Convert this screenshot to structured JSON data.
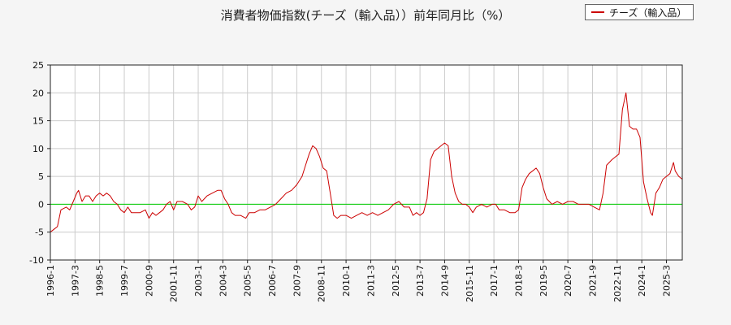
{
  "chart_data": {
    "type": "line",
    "title": "消費者物価指数(チーズ（輸入品））前年同月比（%）",
    "xlabel": "",
    "ylabel": "",
    "ylim": [
      -10,
      25
    ],
    "yticks": [
      25,
      20,
      15,
      10,
      5,
      0,
      -5,
      -10
    ],
    "x_start_year": 1996,
    "x_start_month": 1,
    "x_end_year": 2025,
    "x_end_month": 12,
    "xticks": [
      "1996-1",
      "1997-3",
      "1998-5",
      "1999-7",
      "2000-9",
      "2001-11",
      "2003-1",
      "2004-3",
      "2005-5",
      "2006-7",
      "2007-9",
      "2008-11",
      "2010-1",
      "2011-3",
      "2012-5",
      "2013-7",
      "2014-9",
      "2015-11",
      "2017-1",
      "2018-3",
      "2019-5",
      "2020-7",
      "2021-9",
      "2022-11",
      "2024-1",
      "2025-3"
    ],
    "grid": true,
    "legend_position": "top-right",
    "reference_line": {
      "value": 0,
      "color": "#00cc00"
    },
    "series": [
      {
        "name": "チーズ（輸入品）",
        "color": "#cc0000",
        "points": [
          [
            "1996-1",
            -5
          ],
          [
            "1996-3",
            -4.5
          ],
          [
            "1996-5",
            -4
          ],
          [
            "1996-7",
            -1
          ],
          [
            "1996-10",
            -0.5
          ],
          [
            "1996-12",
            -1
          ],
          [
            "1997-2",
            0.5
          ],
          [
            "1997-4",
            2
          ],
          [
            "1997-5",
            2.5
          ],
          [
            "1997-7",
            0.5
          ],
          [
            "1997-9",
            1.5
          ],
          [
            "1997-11",
            1.5
          ],
          [
            "1998-1",
            0.5
          ],
          [
            "1998-3",
            1.5
          ],
          [
            "1998-5",
            2
          ],
          [
            "1998-7",
            1.5
          ],
          [
            "1998-9",
            2
          ],
          [
            "1998-11",
            1.5
          ],
          [
            "1999-1",
            0.5
          ],
          [
            "1999-3",
            0
          ],
          [
            "1999-5",
            -1
          ],
          [
            "1999-7",
            -1.5
          ],
          [
            "1999-9",
            -0.5
          ],
          [
            "1999-11",
            -1.5
          ],
          [
            "2000-1",
            -1.5
          ],
          [
            "2000-4",
            -1.5
          ],
          [
            "2000-7",
            -1
          ],
          [
            "2000-9",
            -2.5
          ],
          [
            "2000-11",
            -1.5
          ],
          [
            "2001-1",
            -2
          ],
          [
            "2001-3",
            -1.5
          ],
          [
            "2001-5",
            -1
          ],
          [
            "2001-7",
            0
          ],
          [
            "2001-9",
            0.5
          ],
          [
            "2001-11",
            -1
          ],
          [
            "2002-1",
            0.5
          ],
          [
            "2002-4",
            0.5
          ],
          [
            "2002-7",
            0
          ],
          [
            "2002-9",
            -1
          ],
          [
            "2002-11",
            -0.5
          ],
          [
            "2003-1",
            1.5
          ],
          [
            "2003-3",
            0.5
          ],
          [
            "2003-6",
            1.5
          ],
          [
            "2003-9",
            2
          ],
          [
            "2003-12",
            2.5
          ],
          [
            "2004-2",
            2.5
          ],
          [
            "2004-4",
            1
          ],
          [
            "2004-6",
            0
          ],
          [
            "2004-8",
            -1.5
          ],
          [
            "2004-10",
            -2
          ],
          [
            "2005-1",
            -2
          ],
          [
            "2005-4",
            -2.5
          ],
          [
            "2005-6",
            -1.5
          ],
          [
            "2005-9",
            -1.5
          ],
          [
            "2005-12",
            -1
          ],
          [
            "2006-3",
            -1
          ],
          [
            "2006-6",
            -0.5
          ],
          [
            "2006-9",
            0
          ],
          [
            "2006-12",
            1
          ],
          [
            "2007-3",
            2
          ],
          [
            "2007-6",
            2.5
          ],
          [
            "2007-9",
            3.5
          ],
          [
            "2007-12",
            5
          ],
          [
            "2008-2",
            7
          ],
          [
            "2008-4",
            9
          ],
          [
            "2008-6",
            10.5
          ],
          [
            "2008-8",
            10
          ],
          [
            "2008-10",
            8.5
          ],
          [
            "2008-12",
            6.5
          ],
          [
            "2009-2",
            6
          ],
          [
            "2009-4",
            2
          ],
          [
            "2009-6",
            -2
          ],
          [
            "2009-8",
            -2.5
          ],
          [
            "2009-10",
            -2
          ],
          [
            "2010-1",
            -2
          ],
          [
            "2010-4",
            -2.5
          ],
          [
            "2010-7",
            -2
          ],
          [
            "2010-10",
            -1.5
          ],
          [
            "2011-1",
            -2
          ],
          [
            "2011-4",
            -1.5
          ],
          [
            "2011-7",
            -2
          ],
          [
            "2011-10",
            -1.5
          ],
          [
            "2012-1",
            -1
          ],
          [
            "2012-4",
            0
          ],
          [
            "2012-7",
            0.5
          ],
          [
            "2012-10",
            -0.5
          ],
          [
            "2013-1",
            -0.5
          ],
          [
            "2013-3",
            -2
          ],
          [
            "2013-5",
            -1.5
          ],
          [
            "2013-7",
            -2
          ],
          [
            "2013-9",
            -1.5
          ],
          [
            "2013-11",
            1
          ],
          [
            "2014-1",
            8
          ],
          [
            "2014-3",
            9.5
          ],
          [
            "2014-5",
            10
          ],
          [
            "2014-7",
            10.5
          ],
          [
            "2014-9",
            11
          ],
          [
            "2014-11",
            10.5
          ],
          [
            "2015-1",
            5
          ],
          [
            "2015-3",
            2
          ],
          [
            "2015-5",
            0.5
          ],
          [
            "2015-7",
            0
          ],
          [
            "2015-9",
            0
          ],
          [
            "2015-11",
            -0.5
          ],
          [
            "2016-1",
            -1.5
          ],
          [
            "2016-3",
            -0.5
          ],
          [
            "2016-6",
            0
          ],
          [
            "2016-9",
            -0.5
          ],
          [
            "2016-12",
            0
          ],
          [
            "2017-2",
            0
          ],
          [
            "2017-4",
            -1
          ],
          [
            "2017-7",
            -1
          ],
          [
            "2017-10",
            -1.5
          ],
          [
            "2018-1",
            -1.5
          ],
          [
            "2018-3",
            -1
          ],
          [
            "2018-5",
            3
          ],
          [
            "2018-7",
            4.5
          ],
          [
            "2018-9",
            5.5
          ],
          [
            "2018-11",
            6
          ],
          [
            "2019-1",
            6.5
          ],
          [
            "2019-3",
            5.5
          ],
          [
            "2019-5",
            3
          ],
          [
            "2019-7",
            1
          ],
          [
            "2019-10",
            0
          ],
          [
            "2020-1",
            0.5
          ],
          [
            "2020-4",
            0
          ],
          [
            "2020-7",
            0.5
          ],
          [
            "2020-10",
            0.5
          ],
          [
            "2021-1",
            0
          ],
          [
            "2021-4",
            0
          ],
          [
            "2021-7",
            0
          ],
          [
            "2021-10",
            -0.5
          ],
          [
            "2022-1",
            -1
          ],
          [
            "2022-3",
            2
          ],
          [
            "2022-5",
            7
          ],
          [
            "2022-8",
            8
          ],
          [
            "2022-10",
            8.5
          ],
          [
            "2022-12",
            9
          ],
          [
            "2023-2",
            17
          ],
          [
            "2023-4",
            20
          ],
          [
            "2023-6",
            14
          ],
          [
            "2023-8",
            13.5
          ],
          [
            "2023-10",
            13.5
          ],
          [
            "2023-12",
            12
          ],
          [
            "2024-2",
            4
          ],
          [
            "2024-4",
            1
          ],
          [
            "2024-6",
            -1.5
          ],
          [
            "2024-7",
            -2
          ],
          [
            "2024-9",
            2
          ],
          [
            "2024-11",
            3
          ],
          [
            "2025-1",
            4.5
          ],
          [
            "2025-3",
            5
          ],
          [
            "2025-5",
            5.5
          ],
          [
            "2025-7",
            7.5
          ],
          [
            "2025-8",
            6
          ],
          [
            "2025-10",
            5
          ],
          [
            "2025-12",
            4.5
          ]
        ]
      }
    ]
  }
}
